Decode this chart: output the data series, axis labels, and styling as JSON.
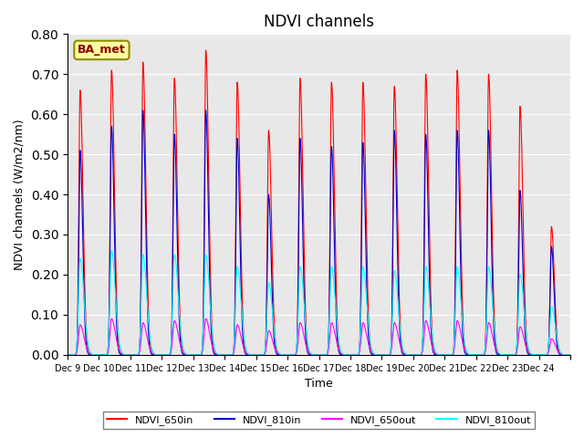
{
  "title": "NDVI channels",
  "ylabel": "NDVI channels (W/m2/nm)",
  "xlabel": "Time",
  "annotation": "BA_met",
  "ylim": [
    0.0,
    0.8
  ],
  "yticks": [
    0.0,
    0.1,
    0.2,
    0.3,
    0.4,
    0.5,
    0.6,
    0.7,
    0.8
  ],
  "xtick_labels": [
    "Dec 9",
    "Dec 10",
    "Dec 11",
    "Dec 12",
    "Dec 13",
    "Dec 14",
    "Dec 15",
    "Dec 16",
    "Dec 17",
    "Dec 18",
    "Dec 19",
    "Dec 20",
    "Dec 21",
    "Dec 22",
    "Dec 23",
    "Dec 24",
    ""
  ],
  "colors": {
    "NDVI_650in": "#FF0000",
    "NDVI_810in": "#0000CC",
    "NDVI_650out": "#FF00FF",
    "NDVI_810out": "#00FFFF"
  },
  "background_color": "#E8E8E8",
  "title_fontsize": 12,
  "label_fontsize": 9,
  "num_days": 16,
  "peak_centers": [
    0.4,
    1.4,
    2.4,
    3.4,
    4.4,
    5.4,
    6.4,
    7.4,
    8.4,
    9.4,
    10.4,
    11.4,
    12.4,
    13.4,
    14.4,
    15.4
  ],
  "peak_heights_650in": [
    0.66,
    0.71,
    0.73,
    0.69,
    0.76,
    0.68,
    0.56,
    0.69,
    0.68,
    0.68,
    0.67,
    0.7,
    0.71,
    0.7,
    0.62,
    0.32
  ],
  "peak_heights_810in": [
    0.51,
    0.57,
    0.61,
    0.55,
    0.61,
    0.54,
    0.4,
    0.54,
    0.52,
    0.53,
    0.56,
    0.55,
    0.56,
    0.56,
    0.41,
    0.27
  ],
  "peak_heights_650out": [
    0.075,
    0.09,
    0.08,
    0.085,
    0.09,
    0.075,
    0.06,
    0.08,
    0.08,
    0.08,
    0.08,
    0.085,
    0.085,
    0.08,
    0.07,
    0.04
  ],
  "peak_heights_810out": [
    0.24,
    0.26,
    0.25,
    0.25,
    0.25,
    0.22,
    0.18,
    0.22,
    0.22,
    0.22,
    0.21,
    0.22,
    0.22,
    0.22,
    0.2,
    0.12
  ]
}
